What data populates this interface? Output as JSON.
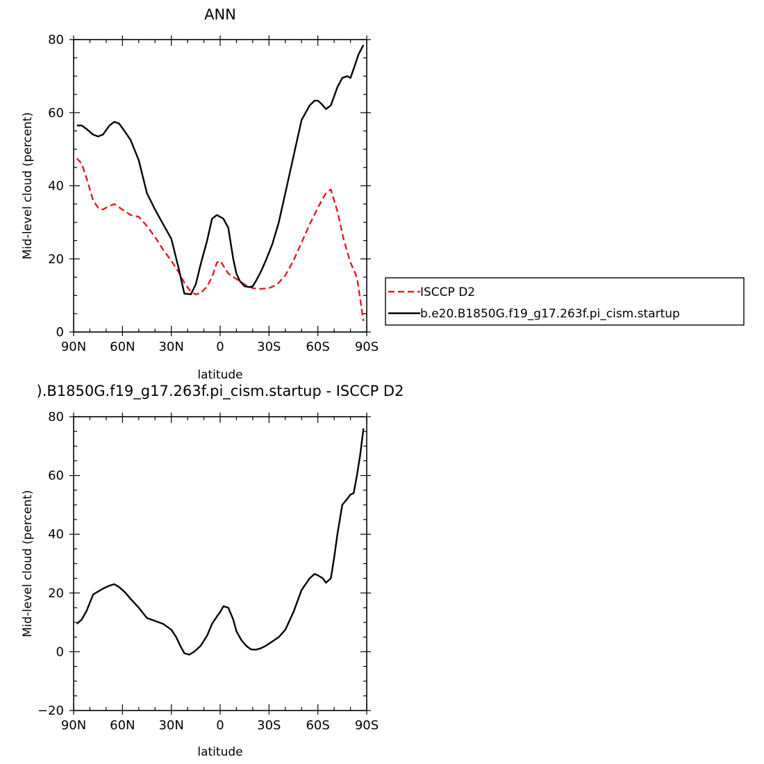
{
  "chart_data": [
    {
      "type": "line",
      "title": "ANN",
      "xlabel": "latitude",
      "ylabel": "Mid-level cloud (percent)",
      "x_ticks": [
        {
          "value": 90,
          "label": "90N"
        },
        {
          "value": 60,
          "label": "60N"
        },
        {
          "value": 30,
          "label": "30N"
        },
        {
          "value": 0,
          "label": "0"
        },
        {
          "value": -30,
          "label": "30S"
        },
        {
          "value": -60,
          "label": "60S"
        },
        {
          "value": -90,
          "label": "90S"
        }
      ],
      "xlim": [
        90,
        -90
      ],
      "ylim": [
        0,
        80
      ],
      "y_ticks": [
        0,
        20,
        40,
        60,
        80
      ],
      "legend_position": "outside-right",
      "series": [
        {
          "name": "ISCCP D2",
          "color": "#e41a1c",
          "style": "dashed",
          "x": [
            88,
            85,
            82,
            78,
            75,
            72,
            68,
            65,
            60,
            55,
            50,
            45,
            40,
            35,
            30,
            25,
            22,
            18,
            15,
            12,
            8,
            5,
            2,
            0,
            -5,
            -10,
            -15,
            -20,
            -25,
            -30,
            -35,
            -40,
            -45,
            -50,
            -55,
            -60,
            -63,
            -65,
            -68,
            -72,
            -76,
            -80,
            -84,
            -88
          ],
          "y": [
            47.5,
            46,
            42,
            36,
            34,
            33.5,
            34.5,
            35,
            33.5,
            32,
            31.5,
            29,
            26,
            22.5,
            19.5,
            16,
            13.5,
            11,
            10.3,
            10.6,
            12.5,
            15,
            19,
            19.5,
            16,
            14.5,
            13,
            12,
            11.8,
            12,
            13,
            15.5,
            19.5,
            24.5,
            29.5,
            34,
            36.5,
            38,
            39,
            33,
            25,
            19,
            15,
            3
          ]
        },
        {
          "name": "b.e20.B1850G.f19_g17.263f.pi_cism.startup",
          "color": "#000000",
          "style": "solid",
          "x": [
            88,
            85,
            82,
            78,
            75,
            72,
            68,
            65,
            62,
            58,
            55,
            50,
            45,
            40,
            35,
            30,
            25,
            22,
            18,
            15,
            12,
            8,
            5,
            2,
            0,
            -2,
            -5,
            -8,
            -10,
            -12,
            -15,
            -18,
            -20,
            -22,
            -25,
            -28,
            -32,
            -36,
            -40,
            -45,
            -50,
            -55,
            -58,
            -60,
            -62,
            -65,
            -68,
            -72,
            -75,
            -78,
            -80,
            -82,
            -85,
            -88
          ],
          "y": [
            56.5,
            56.5,
            55.5,
            54,
            53.5,
            54,
            56.5,
            57.5,
            57,
            54.5,
            52.5,
            47,
            38,
            33.5,
            29.5,
            25.5,
            16.5,
            10.5,
            10.3,
            13,
            18.5,
            25,
            31,
            32,
            31.5,
            31,
            28.5,
            20,
            16,
            14,
            12.5,
            12.3,
            12.5,
            14,
            16.5,
            19.5,
            24,
            30,
            38,
            48,
            58,
            62,
            63.3,
            63.3,
            62.5,
            61,
            62,
            67,
            69.5,
            70,
            69.5,
            72,
            76,
            78.5
          ]
        }
      ]
    },
    {
      "type": "line",
      "title": ").B1850G.f19_g17.263f.pi_cism.startup - ISCCP D2",
      "xlabel": "latitude",
      "ylabel": "Mid-level cloud (percent)",
      "x_ticks": [
        {
          "value": 90,
          "label": "90N"
        },
        {
          "value": 60,
          "label": "60N"
        },
        {
          "value": 30,
          "label": "30N"
        },
        {
          "value": 0,
          "label": "0"
        },
        {
          "value": -30,
          "label": "30S"
        },
        {
          "value": -60,
          "label": "60S"
        },
        {
          "value": -90,
          "label": "90S"
        }
      ],
      "xlim": [
        90,
        -90
      ],
      "ylim": [
        -20,
        80
      ],
      "y_ticks": [
        -20,
        0,
        20,
        40,
        60,
        80
      ],
      "series": [
        {
          "color": "#000000",
          "style": "solid",
          "x": [
            88,
            85,
            82,
            78,
            75,
            72,
            68,
            65,
            62,
            58,
            55,
            50,
            45,
            40,
            35,
            30,
            27,
            24,
            22,
            19,
            16,
            12,
            8,
            5,
            2,
            0,
            -2,
            -5,
            -8,
            -10,
            -13,
            -16,
            -19,
            -22,
            -25,
            -28,
            -32,
            -36,
            -40,
            -45,
            -50,
            -55,
            -58,
            -60,
            -63,
            -65,
            -68,
            -70,
            -72,
            -75,
            -78,
            -80,
            -82,
            -84,
            -86,
            -88
          ],
          "y": [
            9.5,
            11,
            14,
            19.5,
            20.5,
            21.5,
            22.5,
            23,
            22,
            20,
            18,
            15,
            11.5,
            10.5,
            9.5,
            7.5,
            5,
            1.5,
            -0.5,
            -1,
            0,
            2,
            5.5,
            9.5,
            12,
            13.5,
            15.5,
            15,
            11,
            7,
            4,
            2,
            0.8,
            0.7,
            1.2,
            2,
            3.5,
            5,
            7.5,
            13.5,
            21,
            25,
            26.5,
            26,
            25,
            23.5,
            25,
            32,
            40,
            50,
            52,
            53.5,
            54,
            60,
            67,
            76
          ]
        }
      ]
    }
  ]
}
